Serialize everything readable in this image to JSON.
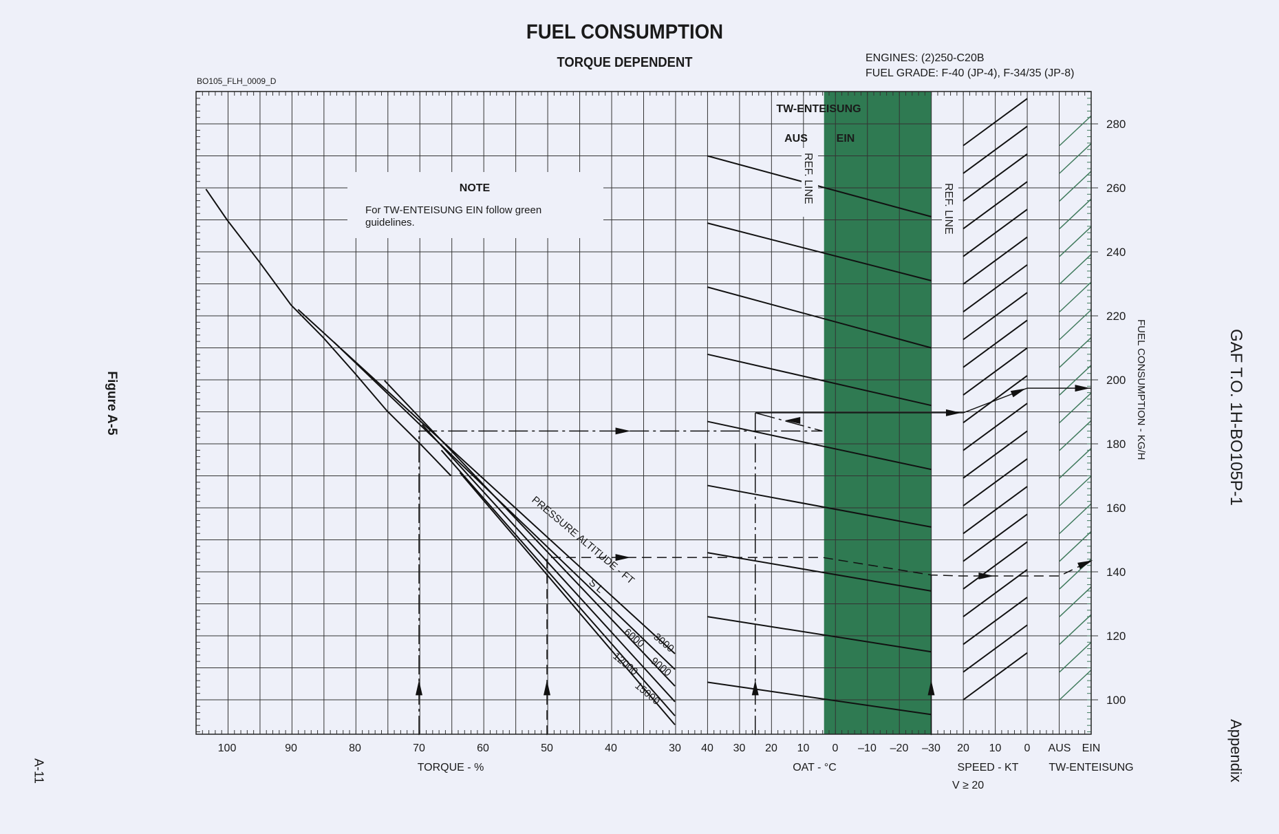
{
  "header": {
    "title": "FUEL CONSUMPTION",
    "subtitle": "TORQUE DEPENDENT",
    "drawing_code": "BO105_FLH_0009_D",
    "engines": "ENGINES: (2)250-C20B",
    "fuel_grade": "FUEL GRADE: F-40 (JP-4), F-34/35 (JP-8)"
  },
  "margin": {
    "figure": "Figure A-5",
    "page": "A-11",
    "doc_id": "GAF T.O. 1H-BO105P-1",
    "section": "Appendix"
  },
  "note": {
    "heading": "NOTE",
    "text_line1": "For TW-ENTEISUNG EIN follow green",
    "text_line2": "guidelines."
  },
  "deice": {
    "title": "TW-ENTEISUNG",
    "aus": "AUS",
    "ein": "EIN",
    "ref_line": "REF. LINE"
  },
  "colors": {
    "background": "#eef0f9",
    "green_band": "#2f7a52",
    "green_line": "#3f7a5c",
    "ink": "#1a1a1a"
  },
  "chart_data": {
    "type": "line",
    "title": "FUEL CONSUMPTION",
    "subtitle": "TORQUE DEPENDENT",
    "ylabel": "FUEL CONSUMPTION - KG/H",
    "ylim": [
      89,
      290
    ],
    "yticks": [
      100,
      120,
      140,
      160,
      180,
      200,
      220,
      240,
      260,
      280
    ],
    "grid": true,
    "panels": {
      "torque": {
        "xlabel": "TORQUE - %",
        "xlim": [
          104.8,
          30
        ],
        "xticks": [
          100,
          90,
          80,
          70,
          60,
          50,
          40,
          30
        ]
      },
      "oat": {
        "xlabel": "OAT - °C",
        "xlim": [
          40,
          -30
        ],
        "xticks": [
          40,
          30,
          20,
          10,
          0,
          -10,
          -20,
          -30
        ],
        "deice_band_oat": [
          3.5,
          -30
        ]
      },
      "speed": {
        "xlabel": "SPEED - KT",
        "xlabel2": "V ≥ 20",
        "xlim": [
          20,
          0
        ],
        "xticks": [
          20,
          10,
          0
        ]
      },
      "deice": {
        "xlabel": "TW-ENTEISUNG",
        "xticks": [
          "AUS",
          "EIN"
        ]
      }
    },
    "envelope": [
      [
        103.3,
        259.6
      ],
      [
        100,
        250
      ],
      [
        95,
        237
      ],
      [
        90,
        223.4
      ],
      [
        85,
        213.3
      ],
      [
        80,
        202
      ],
      [
        75,
        190.3
      ],
      [
        70,
        180.4
      ],
      [
        65,
        170
      ]
    ],
    "altitude_label": "PRESSURE ALTITUDE - FT",
    "altitude_series": [
      {
        "name": "S L",
        "points": [
          [
            88.9,
            222
          ],
          [
            30,
            114.4
          ]
        ]
      },
      {
        "name": "3000",
        "points": [
          [
            83.3,
            211.8
          ],
          [
            30,
            109.5
          ]
        ]
      },
      {
        "name": "6000",
        "points": [
          [
            75.4,
            199.8
          ],
          [
            30,
            104.3
          ]
        ]
      },
      {
        "name": "9000",
        "points": [
          [
            69.5,
            186
          ],
          [
            30,
            99.4
          ]
        ]
      },
      {
        "name": "12000",
        "points": [
          [
            66.5,
            178
          ],
          [
            30,
            95
          ]
        ]
      },
      {
        "name": "15000",
        "points": [
          [
            63.6,
            171
          ],
          [
            30,
            92.2
          ]
        ]
      }
    ],
    "oat_guidelines": [
      [
        270,
        251
      ],
      [
        249,
        231
      ],
      [
        229,
        210
      ],
      [
        208,
        192
      ],
      [
        187,
        172
      ],
      [
        167,
        154
      ],
      [
        146,
        134
      ],
      [
        126,
        115
      ],
      [
        105.5,
        95.4
      ]
    ],
    "speed_guidelines": {
      "start_at_20kt": 273.2,
      "step": 8.66,
      "count": 21,
      "rise_to_0kt": 14.7
    },
    "deice_guidelines": {
      "start_at_aus": 273.2,
      "step": 8.66,
      "count": 21,
      "rise_to_ein": 9.3
    },
    "examples": [
      {
        "style": "dashdot",
        "points": [
          [
            "torque",
            70,
            89
          ],
          [
            "torque",
            70,
            184
          ],
          [
            "oat",
            4,
            184
          ],
          [
            "oat",
            25,
            189.7
          ]
        ]
      },
      {
        "style": "dashdot",
        "points": [
          [
            "oat",
            25,
            89
          ],
          [
            "oat",
            25,
            189.7
          ]
        ]
      },
      {
        "style": "solid",
        "points": [
          [
            "oat",
            25,
            189.7
          ],
          [
            "speed",
            20,
            189.7
          ],
          [
            "speed",
            0,
            197.4
          ],
          [
            "deice",
            1,
            197.4
          ]
        ]
      },
      {
        "style": "dashed",
        "points": [
          [
            "torque",
            50,
            89
          ],
          [
            "torque",
            50,
            144.5
          ],
          [
            "oat",
            4,
            144.5
          ],
          [
            "oat",
            -30,
            139
          ],
          [
            "speed",
            20,
            138.7
          ],
          [
            "deice",
            0,
            138.7
          ],
          [
            "deice",
            1,
            143.5
          ]
        ]
      },
      {
        "style": "solid",
        "points": [
          [
            "oat",
            -30,
            89
          ],
          [
            "oat",
            -30,
            139
          ]
        ]
      }
    ],
    "arrows": [
      [
        "torque",
        70,
        104,
        "up"
      ],
      [
        "torque",
        50,
        104,
        "up"
      ],
      [
        "oat",
        25,
        104,
        "up"
      ],
      [
        "oat",
        -30,
        104,
        "up"
      ],
      [
        "torque",
        38,
        184,
        "right"
      ],
      [
        "torque",
        38,
        144.5,
        "right"
      ],
      [
        "oat",
        13.5,
        187.3,
        "left"
      ],
      [
        "speed",
        22.8,
        189.7,
        "right"
      ],
      [
        "speed",
        12.6,
        138.7,
        "right"
      ],
      [
        "speed",
        2.4,
        196.5,
        "upright"
      ],
      [
        "deice",
        0.75,
        197.4,
        "right"
      ],
      [
        "deice",
        0.85,
        142.8,
        "upright"
      ]
    ]
  }
}
